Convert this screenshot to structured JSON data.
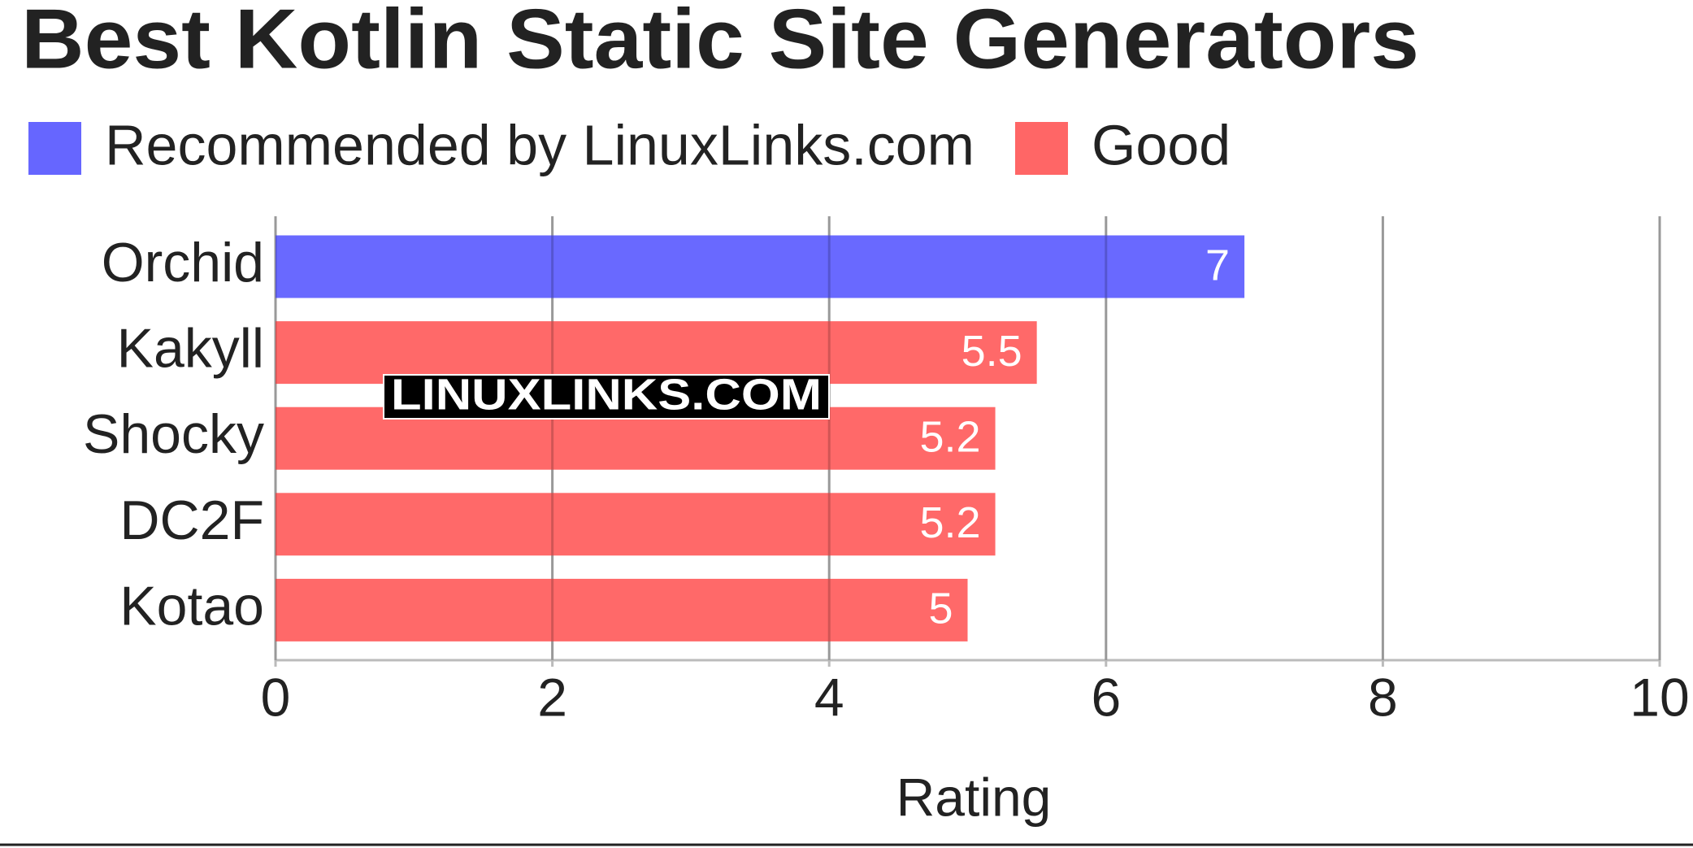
{
  "chart_data": {
    "type": "bar",
    "orientation": "horizontal",
    "title": "Best Kotlin Static Site Generators",
    "legend": [
      {
        "name": "Recommended by LinuxLinks.com",
        "color": "#6666ff"
      },
      {
        "name": "Good",
        "color": "#ff6666"
      }
    ],
    "categories": [
      "Orchid",
      "Kakyll",
      "Shocky",
      "DC2F",
      "Kotao"
    ],
    "values": [
      7,
      5.5,
      5.2,
      5.2,
      5
    ],
    "colors": [
      "#6666ff",
      "#ff6666",
      "#ff6666",
      "#ff6666",
      "#ff6666"
    ],
    "xlim": [
      0,
      10
    ],
    "xticks": [
      0,
      2,
      4,
      6,
      8,
      10
    ],
    "x_label": "Rating",
    "grid": true,
    "watermark": "LINUXLINKS.COM"
  }
}
